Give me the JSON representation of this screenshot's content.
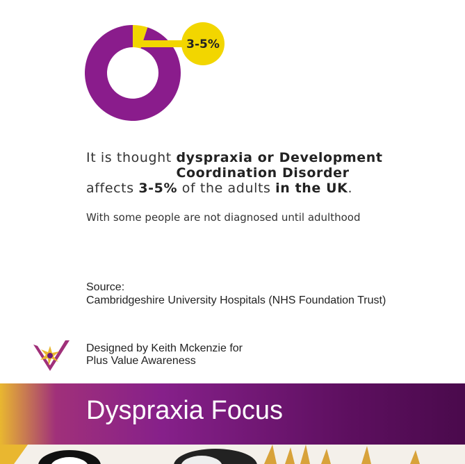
{
  "chart_data": {
    "type": "donut",
    "categories": [
      null,
      null
    ],
    "values": [
      5,
      95
    ],
    "colors": [
      "#f2d600",
      "#8a1c8c"
    ],
    "annotation": "3-5%"
  },
  "statement": {
    "parts": [
      "It is thought ",
      "dyspraxia or Development Coordination Disorder",
      "affects ",
      "3-5%",
      " of the adults ",
      "in the UK",
      "."
    ]
  },
  "note": "With some people are not diagnosed until adulthood",
  "source": {
    "label": "Source:",
    "text": "Cambridgeshire University Hospitals (NHS Foundation Trust)"
  },
  "credit": {
    "line1": "Designed by Keith Mckenzie for",
    "line2": "Plus Value Awareness"
  },
  "banner": {
    "title": "Dyspraxia Focus"
  }
}
